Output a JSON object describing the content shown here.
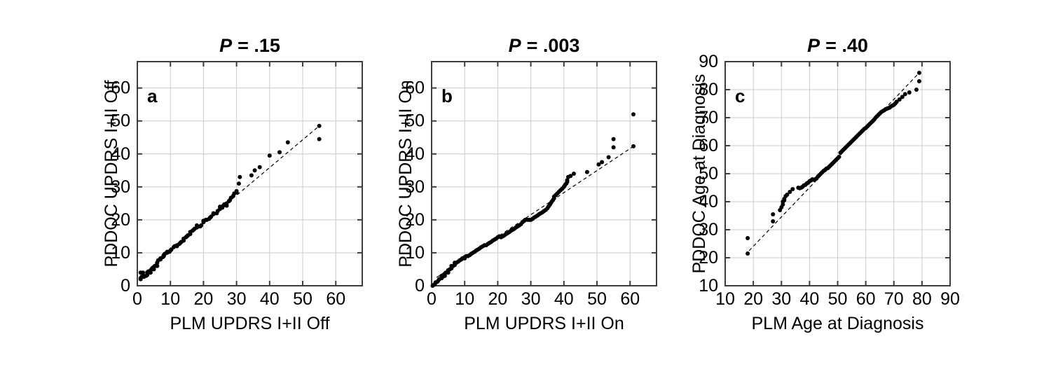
{
  "colors": {
    "background": "#ffffff",
    "point": "#000000",
    "fit_line": "#000000",
    "gridline": "#cbcbcb",
    "box_border": "#3d3d3d",
    "text": "#000000"
  },
  "chart_data": [
    {
      "type": "scatter",
      "panel": "a",
      "letter": "a",
      "title": {
        "p": "P",
        "rest": "= .15"
      },
      "xlabel": "PLM UPDRS I+II Off",
      "ylabel": "PDDOC UPDRS I+II Off",
      "xlim": [
        0,
        68
      ],
      "ylim": [
        0,
        68
      ],
      "xticks": [
        0,
        10,
        20,
        30,
        40,
        50,
        60
      ],
      "yticks": [
        0,
        10,
        20,
        30,
        40,
        50,
        60
      ],
      "grid": true,
      "legend": "none",
      "fit_line": {
        "style": "dashed",
        "x1": 1,
        "y1": 3,
        "x2": 55,
        "y2": 48.5
      },
      "points": [
        [
          1,
          2
        ],
        [
          1,
          2.3
        ],
        [
          1,
          4
        ],
        [
          1.3,
          2.7
        ],
        [
          1.7,
          4
        ],
        [
          2,
          2.7
        ],
        [
          2,
          3
        ],
        [
          2.7,
          3
        ],
        [
          3,
          3.3
        ],
        [
          3,
          4
        ],
        [
          3.3,
          4.3
        ],
        [
          4,
          4
        ],
        [
          4,
          4.7
        ],
        [
          4.3,
          5
        ],
        [
          5,
          5
        ],
        [
          5,
          5.7
        ],
        [
          5.3,
          6
        ],
        [
          6,
          6
        ],
        [
          6,
          7
        ],
        [
          6.3,
          7.7
        ],
        [
          7,
          8
        ],
        [
          7,
          8.3
        ],
        [
          7.7,
          8.7
        ],
        [
          8,
          9
        ],
        [
          8,
          9.3
        ],
        [
          8.3,
          9.7
        ],
        [
          9,
          10
        ],
        [
          9,
          10.3
        ],
        [
          9.7,
          10.3
        ],
        [
          10,
          10.7
        ],
        [
          10.3,
          11
        ],
        [
          11,
          11.7
        ],
        [
          11.3,
          12
        ],
        [
          12,
          12
        ],
        [
          12,
          12.3
        ],
        [
          12.7,
          12.7
        ],
        [
          13,
          13
        ],
        [
          13.3,
          13.3
        ],
        [
          14,
          13.7
        ],
        [
          14,
          14.3
        ],
        [
          14.7,
          14.7
        ],
        [
          15,
          15
        ],
        [
          15.3,
          15.3
        ],
        [
          16,
          15.7
        ],
        [
          16,
          16.3
        ],
        [
          16.7,
          16.7
        ],
        [
          17,
          17
        ],
        [
          17.3,
          17.3
        ],
        [
          18,
          17.7
        ],
        [
          18,
          18.3
        ],
        [
          19,
          18
        ],
        [
          19.3,
          18.3
        ],
        [
          20,
          19.3
        ],
        [
          20,
          19.7
        ],
        [
          20.7,
          20
        ],
        [
          21,
          20
        ],
        [
          21.7,
          20.3
        ],
        [
          22,
          20.7
        ],
        [
          22.3,
          21
        ],
        [
          23,
          21.7
        ],
        [
          23,
          22
        ],
        [
          24,
          22
        ],
        [
          24.3,
          22.7
        ],
        [
          25,
          23.3
        ],
        [
          25,
          24
        ],
        [
          25.7,
          23.7
        ],
        [
          26,
          24.3
        ],
        [
          26.3,
          24.7
        ],
        [
          27,
          24.3
        ],
        [
          27,
          25
        ],
        [
          27.7,
          25.7
        ],
        [
          28,
          26
        ],
        [
          28.3,
          26.7
        ],
        [
          29,
          27.3
        ],
        [
          29.3,
          28
        ],
        [
          30,
          28.3
        ],
        [
          30,
          28.7
        ],
        [
          30.7,
          31
        ],
        [
          31,
          33
        ],
        [
          34.5,
          33.5
        ],
        [
          35.5,
          35
        ],
        [
          37,
          36
        ],
        [
          40,
          39.5
        ],
        [
          43,
          40.5
        ],
        [
          45.5,
          43.5
        ],
        [
          55,
          44.5
        ],
        [
          55,
          48.5
        ]
      ]
    },
    {
      "type": "scatter",
      "panel": "b",
      "letter": "b",
      "title": {
        "p": "P",
        "rest": "= .003"
      },
      "xlabel": "PLM UPDRS I+II On",
      "ylabel": "PDDOC UPDRS I+II On",
      "xlim": [
        0,
        68
      ],
      "ylim": [
        0,
        68
      ],
      "xticks": [
        0,
        10,
        20,
        30,
        40,
        50,
        60
      ],
      "yticks": [
        0,
        10,
        20,
        30,
        40,
        50,
        60
      ],
      "grid": true,
      "legend": "none",
      "fit_line": {
        "style": "dashed",
        "x1": 1.5,
        "y1": 2.5,
        "x2": 61,
        "y2": 42.3
      },
      "points": [
        [
          0.3,
          0
        ],
        [
          0.7,
          0.3
        ],
        [
          1,
          0.5
        ],
        [
          1.2,
          1
        ],
        [
          1.7,
          1.2
        ],
        [
          2,
          1.5
        ],
        [
          2.3,
          2
        ],
        [
          3,
          2.3
        ],
        [
          3,
          3
        ],
        [
          3.3,
          2.7
        ],
        [
          4,
          3
        ],
        [
          4,
          3.7
        ],
        [
          4.3,
          4
        ],
        [
          5,
          4
        ],
        [
          5,
          4.7
        ],
        [
          5.5,
          5
        ],
        [
          6,
          5.3
        ],
        [
          6,
          6
        ],
        [
          6.5,
          6
        ],
        [
          7,
          6.3
        ],
        [
          7,
          7
        ],
        [
          7.5,
          7
        ],
        [
          8,
          7.3
        ],
        [
          8.5,
          7.7
        ],
        [
          9,
          8
        ],
        [
          9.3,
          8.3
        ],
        [
          10,
          8.3
        ],
        [
          10,
          8.7
        ],
        [
          10.5,
          9
        ],
        [
          11,
          9
        ],
        [
          11.5,
          9.3
        ],
        [
          12,
          9.7
        ],
        [
          12.5,
          10
        ],
        [
          13,
          10.3
        ],
        [
          13.5,
          10.7
        ],
        [
          14,
          11
        ],
        [
          14.5,
          11.3
        ],
        [
          15,
          11.7
        ],
        [
          15.5,
          12
        ],
        [
          16,
          12.3
        ],
        [
          16.5,
          12.3
        ],
        [
          17,
          12.7
        ],
        [
          17.5,
          13
        ],
        [
          18,
          13.3
        ],
        [
          18.5,
          13.7
        ],
        [
          19,
          14
        ],
        [
          19.5,
          14.3
        ],
        [
          20,
          14.7
        ],
        [
          20.5,
          15
        ],
        [
          21,
          14.7
        ],
        [
          21.5,
          15
        ],
        [
          22,
          15.3
        ],
        [
          22.5,
          15.7
        ],
        [
          23,
          16
        ],
        [
          23.5,
          16.3
        ],
        [
          24,
          16.7
        ],
        [
          24.5,
          17
        ],
        [
          25,
          17.3
        ],
        [
          25.5,
          17.7
        ],
        [
          26,
          18
        ],
        [
          26.5,
          18.3
        ],
        [
          27,
          18.7
        ],
        [
          27.5,
          19.3
        ],
        [
          28,
          19.7
        ],
        [
          28.3,
          20
        ],
        [
          29,
          20
        ],
        [
          29.5,
          20
        ],
        [
          30,
          20
        ],
        [
          30.5,
          20.3
        ],
        [
          31,
          20.7
        ],
        [
          31.5,
          21
        ],
        [
          32,
          21.3
        ],
        [
          32.5,
          21.7
        ],
        [
          33,
          22
        ],
        [
          33.5,
          22.3
        ],
        [
          34,
          22.7
        ],
        [
          34.5,
          23
        ],
        [
          35,
          23.5
        ],
        [
          35.3,
          24
        ],
        [
          35.7,
          24.5
        ],
        [
          36,
          25
        ],
        [
          36.3,
          25.5
        ],
        [
          36.7,
          26
        ],
        [
          37,
          26.5
        ],
        [
          37,
          27
        ],
        [
          37.5,
          27.5
        ],
        [
          38,
          28
        ],
        [
          38.5,
          28.5
        ],
        [
          39,
          29
        ],
        [
          39.5,
          29.5
        ],
        [
          40,
          30
        ],
        [
          40.3,
          30.5
        ],
        [
          40.7,
          31
        ],
        [
          41,
          31.5
        ],
        [
          41,
          32
        ],
        [
          41.3,
          33
        ],
        [
          42,
          33.3
        ],
        [
          43,
          34
        ],
        [
          47,
          34.5
        ],
        [
          50.5,
          36.8
        ],
        [
          51.5,
          37.5
        ],
        [
          53.5,
          39
        ],
        [
          55,
          42
        ],
        [
          55,
          44.5
        ],
        [
          61,
          42.3
        ],
        [
          61,
          52
        ]
      ]
    },
    {
      "type": "scatter",
      "panel": "c",
      "letter": "c",
      "title": {
        "p": "P",
        "rest": "= .40"
      },
      "xlabel": "PLM Age at Diagnosis",
      "ylabel": "PDDOC Age at Diagnosis",
      "xlim": [
        10,
        90
      ],
      "ylim": [
        10,
        90
      ],
      "xticks": [
        10,
        20,
        30,
        40,
        50,
        60,
        70,
        80,
        90
      ],
      "yticks": [
        10,
        20,
        30,
        40,
        50,
        60,
        70,
        80,
        90
      ],
      "grid": true,
      "legend": "none",
      "fit_line": {
        "style": "dashed",
        "x1": 18.5,
        "y1": 22.5,
        "x2": 79,
        "y2": 86
      },
      "points": [
        [
          18,
          21.5
        ],
        [
          18,
          27
        ],
        [
          27,
          33
        ],
        [
          27,
          35.5
        ],
        [
          29.5,
          37
        ],
        [
          30,
          38
        ],
        [
          30.5,
          39
        ],
        [
          30.5,
          40
        ],
        [
          31,
          40.5
        ],
        [
          31,
          41
        ],
        [
          31.5,
          42
        ],
        [
          32,
          42.5
        ],
        [
          33,
          43.5
        ],
        [
          34,
          44.5
        ],
        [
          36,
          45
        ],
        [
          36.5,
          44.8
        ],
        [
          37,
          45
        ],
        [
          37.5,
          45.3
        ],
        [
          38,
          45.8
        ],
        [
          38.5,
          46
        ],
        [
          39,
          46.5
        ],
        [
          39.5,
          46.8
        ],
        [
          40,
          47.3
        ],
        [
          40.5,
          47.6
        ],
        [
          41,
          48
        ],
        [
          41.5,
          47.8
        ],
        [
          42,
          48
        ],
        [
          42.5,
          48.3
        ],
        [
          43,
          49
        ],
        [
          43.5,
          49.5
        ],
        [
          44,
          50
        ],
        [
          44.5,
          50.5
        ],
        [
          45,
          51
        ],
        [
          45.5,
          51.3
        ],
        [
          46,
          51.8
        ],
        [
          46.5,
          52
        ],
        [
          47,
          52.5
        ],
        [
          47.5,
          53
        ],
        [
          48,
          53.5
        ],
        [
          48.5,
          54
        ],
        [
          49,
          54.5
        ],
        [
          49.5,
          55
        ],
        [
          50,
          55.5
        ],
        [
          50.5,
          56
        ],
        [
          51,
          57.5
        ],
        [
          51.5,
          58
        ],
        [
          52,
          58.5
        ],
        [
          52.5,
          59
        ],
        [
          53,
          59.5
        ],
        [
          53.5,
          60
        ],
        [
          54,
          60.5
        ],
        [
          54.5,
          61
        ],
        [
          55,
          61.5
        ],
        [
          55.5,
          62
        ],
        [
          56,
          62.5
        ],
        [
          56.5,
          63
        ],
        [
          57,
          63.5
        ],
        [
          57.5,
          64
        ],
        [
          58,
          64.5
        ],
        [
          58.5,
          65
        ],
        [
          59,
          65.5
        ],
        [
          59.5,
          66
        ],
        [
          60,
          66.3
        ],
        [
          60.5,
          66.8
        ],
        [
          61,
          67.3
        ],
        [
          61.5,
          67.8
        ],
        [
          62,
          68.3
        ],
        [
          62.5,
          68.8
        ],
        [
          63,
          69.3
        ],
        [
          63.5,
          70
        ],
        [
          64,
          70.5
        ],
        [
          64.5,
          71
        ],
        [
          65,
          71.5
        ],
        [
          65.5,
          72
        ],
        [
          66,
          72.3
        ],
        [
          66.5,
          72.6
        ],
        [
          67,
          73
        ],
        [
          67.5,
          73.2
        ],
        [
          68,
          73.4
        ],
        [
          68.5,
          73.6
        ],
        [
          69,
          74
        ],
        [
          69.5,
          74.3
        ],
        [
          70,
          74.6
        ],
        [
          70.5,
          75.1
        ],
        [
          71,
          75.7
        ],
        [
          72,
          76.5
        ],
        [
          73,
          77.4
        ],
        [
          74,
          78.4
        ],
        [
          75.5,
          79
        ],
        [
          78,
          80
        ],
        [
          79,
          83
        ],
        [
          79,
          86
        ]
      ]
    }
  ]
}
